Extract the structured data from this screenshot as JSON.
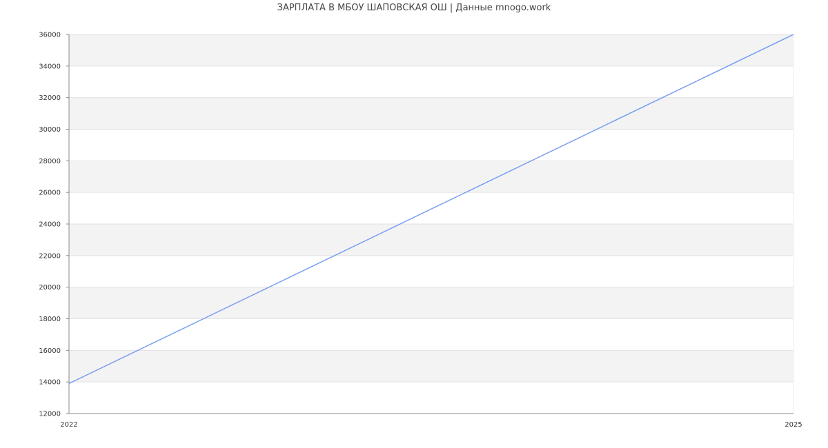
{
  "chart_data": {
    "type": "line",
    "title": "ЗАРПЛАТА В МБОУ ШАПОВСКАЯ ОШ | Данные mnogo.work",
    "x": [
      2022,
      2025
    ],
    "series": [
      {
        "values": [
          13900,
          36000
        ]
      }
    ],
    "xlim": [
      2022,
      2025
    ],
    "ylim": [
      12000,
      36000
    ],
    "xticks": [
      "2022",
      "2025"
    ],
    "yticks": [
      "12000",
      "14000",
      "16000",
      "18000",
      "20000",
      "22000",
      "24000",
      "26000",
      "28000",
      "30000",
      "32000",
      "34000",
      "36000"
    ],
    "grid": true,
    "line_color": "#779ef2",
    "band_color": "#f3f3f3"
  }
}
